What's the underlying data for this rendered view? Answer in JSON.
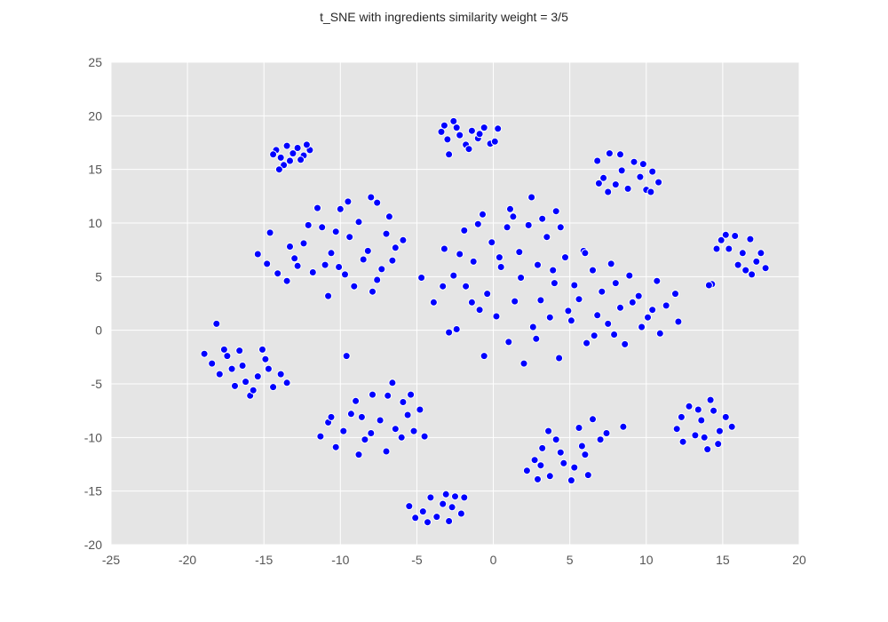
{
  "chart_data": {
    "type": "scatter",
    "title": "t_SNE with ingredients similarity weight = 3/5",
    "xlabel": "",
    "ylabel": "",
    "xlim": [
      -25,
      20
    ],
    "ylim": [
      -20,
      25
    ],
    "xticks": [
      -25,
      -20,
      -15,
      -10,
      -5,
      0,
      5,
      10,
      15,
      20
    ],
    "yticks": [
      -20,
      -15,
      -10,
      -5,
      0,
      5,
      10,
      15,
      20,
      25
    ],
    "grid": true,
    "colors": {
      "background": "#e5e5e5",
      "grid": "#ffffff",
      "point": "#0000ff",
      "point_edge": "#ffffff"
    },
    "series": [
      {
        "points": [
          [
            -14.2,
            16.8
          ],
          [
            -13.9,
            16.1
          ],
          [
            -13.5,
            17.2
          ],
          [
            -13.1,
            16.5
          ],
          [
            -12.8,
            17.0
          ],
          [
            -12.4,
            16.3
          ],
          [
            -12.0,
            16.8
          ],
          [
            -13.7,
            15.4
          ],
          [
            -14.4,
            16.4
          ],
          [
            -12.6,
            15.9
          ],
          [
            -13.3,
            15.8
          ],
          [
            -12.2,
            17.3
          ],
          [
            -14.0,
            15.0
          ],
          [
            -3.4,
            18.5
          ],
          [
            -3.0,
            17.8
          ],
          [
            -2.6,
            19.5
          ],
          [
            -2.2,
            18.2
          ],
          [
            -1.8,
            17.3
          ],
          [
            -1.4,
            18.6
          ],
          [
            -1.0,
            17.9
          ],
          [
            -0.6,
            18.9
          ],
          [
            -0.2,
            17.4
          ],
          [
            0.3,
            18.8
          ],
          [
            -2.9,
            16.4
          ],
          [
            -2.4,
            18.9
          ],
          [
            -1.6,
            16.9
          ],
          [
            -3.2,
            19.1
          ],
          [
            -0.9,
            18.3
          ],
          [
            0.1,
            17.6
          ],
          [
            6.8,
            15.8
          ],
          [
            7.2,
            14.2
          ],
          [
            7.6,
            16.5
          ],
          [
            8.0,
            13.6
          ],
          [
            8.4,
            14.9
          ],
          [
            8.8,
            13.2
          ],
          [
            9.2,
            15.7
          ],
          [
            9.6,
            14.3
          ],
          [
            10.0,
            13.1
          ],
          [
            10.4,
            14.8
          ],
          [
            10.8,
            13.8
          ],
          [
            8.3,
            16.4
          ],
          [
            6.9,
            13.7
          ],
          [
            7.5,
            12.9
          ],
          [
            9.8,
            15.5
          ],
          [
            10.3,
            12.9
          ],
          [
            14.9,
            8.4
          ],
          [
            15.4,
            7.6
          ],
          [
            15.8,
            8.8
          ],
          [
            16.3,
            7.2
          ],
          [
            16.8,
            8.5
          ],
          [
            17.2,
            6.4
          ],
          [
            16.5,
            5.6
          ],
          [
            16.0,
            6.1
          ],
          [
            17.5,
            7.2
          ],
          [
            14.6,
            7.6
          ],
          [
            15.2,
            8.9
          ],
          [
            17.8,
            5.8
          ],
          [
            14.3,
            4.3
          ],
          [
            16.9,
            5.2
          ],
          [
            14.1,
            4.2
          ],
          [
            -15.4,
            7.1
          ],
          [
            -14.8,
            6.2
          ],
          [
            -14.1,
            5.3
          ],
          [
            -13.5,
            4.6
          ],
          [
            -13.0,
            6.7
          ],
          [
            -12.4,
            8.1
          ],
          [
            -11.8,
            5.4
          ],
          [
            -11.2,
            9.6
          ],
          [
            -10.6,
            7.2
          ],
          [
            -10.0,
            11.3
          ],
          [
            -9.4,
            8.7
          ],
          [
            -8.8,
            10.1
          ],
          [
            -8.2,
            7.4
          ],
          [
            -7.6,
            11.9
          ],
          [
            -7.0,
            9.0
          ],
          [
            -6.4,
            7.7
          ],
          [
            -5.9,
            8.4
          ],
          [
            -9.7,
            5.2
          ],
          [
            -9.1,
            4.1
          ],
          [
            -8.5,
            6.6
          ],
          [
            -7.9,
            3.6
          ],
          [
            -7.3,
            5.7
          ],
          [
            -10.8,
            3.2
          ],
          [
            -12.1,
            9.8
          ],
          [
            -13.3,
            7.8
          ],
          [
            -10.3,
            9.2
          ],
          [
            -11.5,
            11.4
          ],
          [
            -6.8,
            10.6
          ],
          [
            -8.0,
            12.4
          ],
          [
            -9.5,
            12.0
          ],
          [
            -11.0,
            6.1
          ],
          [
            -12.8,
            6.0
          ],
          [
            -14.6,
            9.1
          ],
          [
            -7.6,
            4.7
          ],
          [
            -6.6,
            6.5
          ],
          [
            -10.1,
            5.9
          ],
          [
            -4.7,
            4.9
          ],
          [
            -3.9,
            2.6
          ],
          [
            -3.2,
            7.6
          ],
          [
            -2.6,
            5.1
          ],
          [
            -1.9,
            9.3
          ],
          [
            -1.3,
            6.4
          ],
          [
            -0.7,
            10.8
          ],
          [
            -0.1,
            8.2
          ],
          [
            0.5,
            5.9
          ],
          [
            1.1,
            11.3
          ],
          [
            1.7,
            7.3
          ],
          [
            2.3,
            9.8
          ],
          [
            2.9,
            6.1
          ],
          [
            3.5,
            8.7
          ],
          [
            4.1,
            11.1
          ],
          [
            4.7,
            6.8
          ],
          [
            5.3,
            4.2
          ],
          [
            5.9,
            7.4
          ],
          [
            6.5,
            5.6
          ],
          [
            7.1,
            3.6
          ],
          [
            7.7,
            6.2
          ],
          [
            8.3,
            2.1
          ],
          [
            8.9,
            5.1
          ],
          [
            9.5,
            3.2
          ],
          [
            10.1,
            1.2
          ],
          [
            10.7,
            4.6
          ],
          [
            11.3,
            2.3
          ],
          [
            11.9,
            3.4
          ],
          [
            12.1,
            0.8
          ],
          [
            9.7,
            0.3
          ],
          [
            8.6,
            -1.3
          ],
          [
            7.5,
            0.6
          ],
          [
            6.1,
            -1.2
          ],
          [
            5.1,
            0.9
          ],
          [
            4.3,
            -2.6
          ],
          [
            3.7,
            1.2
          ],
          [
            2.8,
            -0.8
          ],
          [
            2.0,
            -3.1
          ],
          [
            1.0,
            -1.1
          ],
          [
            0.2,
            1.3
          ],
          [
            -0.6,
            -2.4
          ],
          [
            -1.4,
            2.6
          ],
          [
            -2.4,
            0.1
          ],
          [
            -3.3,
            4.1
          ],
          [
            -2.9,
            -0.2
          ],
          [
            -0.4,
            3.4
          ],
          [
            1.4,
            2.7
          ],
          [
            3.1,
            2.8
          ],
          [
            4.9,
            1.8
          ],
          [
            6.8,
            1.4
          ],
          [
            7.9,
            -0.4
          ],
          [
            9.1,
            2.6
          ],
          [
            10.4,
            1.9
          ],
          [
            3.2,
            10.4
          ],
          [
            2.5,
            12.4
          ],
          [
            0.9,
            9.6
          ],
          [
            -1.0,
            9.9
          ],
          [
            -1.8,
            4.1
          ],
          [
            0.4,
            6.8
          ],
          [
            4.4,
            9.6
          ],
          [
            6.0,
            7.2
          ],
          [
            8.0,
            4.4
          ],
          [
            10.9,
            -0.3
          ],
          [
            1.8,
            4.9
          ],
          [
            -0.9,
            1.9
          ],
          [
            2.6,
            0.3
          ],
          [
            5.6,
            2.9
          ],
          [
            6.6,
            -0.5
          ],
          [
            4.0,
            4.4
          ],
          [
            -2.2,
            7.1
          ],
          [
            1.3,
            10.6
          ],
          [
            3.9,
            5.6
          ],
          [
            -18.1,
            0.6
          ],
          [
            -18.9,
            -2.2
          ],
          [
            -18.4,
            -3.1
          ],
          [
            -17.9,
            -4.1
          ],
          [
            -17.4,
            -2.4
          ],
          [
            -16.9,
            -5.2
          ],
          [
            -16.4,
            -3.3
          ],
          [
            -15.9,
            -6.1
          ],
          [
            -15.4,
            -4.3
          ],
          [
            -14.9,
            -2.7
          ],
          [
            -14.4,
            -5.3
          ],
          [
            -13.9,
            -4.1
          ],
          [
            -13.5,
            -4.9
          ],
          [
            -15.1,
            -1.8
          ],
          [
            -16.6,
            -1.9
          ],
          [
            -17.1,
            -3.6
          ],
          [
            -14.7,
            -3.6
          ],
          [
            -15.7,
            -5.6
          ],
          [
            -16.2,
            -4.8
          ],
          [
            -17.6,
            -1.8
          ],
          [
            -11.3,
            -9.9
          ],
          [
            -10.8,
            -8.6
          ],
          [
            -10.3,
            -10.9
          ],
          [
            -9.8,
            -9.4
          ],
          [
            -9.3,
            -7.8
          ],
          [
            -8.8,
            -11.6
          ],
          [
            -8.4,
            -10.2
          ],
          [
            -7.9,
            -6.0
          ],
          [
            -7.4,
            -8.4
          ],
          [
            -6.9,
            -6.1
          ],
          [
            -6.4,
            -9.2
          ],
          [
            -6.0,
            -10.0
          ],
          [
            -5.6,
            -7.9
          ],
          [
            -5.2,
            -9.4
          ],
          [
            -4.8,
            -7.4
          ],
          [
            -5.9,
            -6.7
          ],
          [
            -6.6,
            -4.9
          ],
          [
            -9.6,
            -2.4
          ],
          [
            -10.6,
            -8.1
          ],
          [
            -7.0,
            -11.3
          ],
          [
            -8.0,
            -9.6
          ],
          [
            -9.0,
            -6.6
          ],
          [
            -4.5,
            -9.9
          ],
          [
            -5.4,
            -6.0
          ],
          [
            -8.6,
            -8.1
          ],
          [
            -5.5,
            -16.4
          ],
          [
            -5.1,
            -17.5
          ],
          [
            -4.6,
            -16.9
          ],
          [
            -4.1,
            -15.6
          ],
          [
            -3.7,
            -17.4
          ],
          [
            -3.3,
            -16.2
          ],
          [
            -2.9,
            -17.8
          ],
          [
            -2.5,
            -15.5
          ],
          [
            -2.1,
            -17.1
          ],
          [
            -3.1,
            -15.3
          ],
          [
            -4.3,
            -17.9
          ],
          [
            -1.9,
            -15.6
          ],
          [
            -2.7,
            -16.5
          ],
          [
            2.2,
            -13.1
          ],
          [
            2.7,
            -12.1
          ],
          [
            3.2,
            -11.0
          ],
          [
            3.7,
            -13.6
          ],
          [
            4.1,
            -10.2
          ],
          [
            4.6,
            -12.4
          ],
          [
            5.1,
            -14.0
          ],
          [
            5.6,
            -9.1
          ],
          [
            6.0,
            -11.6
          ],
          [
            6.5,
            -8.3
          ],
          [
            7.0,
            -10.2
          ],
          [
            7.4,
            -9.6
          ],
          [
            5.3,
            -12.8
          ],
          [
            4.4,
            -11.4
          ],
          [
            3.6,
            -9.4
          ],
          [
            8.5,
            -9.0
          ],
          [
            6.2,
            -13.5
          ],
          [
            2.9,
            -13.9
          ],
          [
            5.8,
            -10.8
          ],
          [
            3.1,
            -12.6
          ],
          [
            12.0,
            -9.2
          ],
          [
            12.4,
            -10.4
          ],
          [
            12.8,
            -7.1
          ],
          [
            13.2,
            -9.8
          ],
          [
            13.6,
            -8.4
          ],
          [
            14.0,
            -11.1
          ],
          [
            14.4,
            -7.5
          ],
          [
            14.8,
            -9.4
          ],
          [
            15.2,
            -8.1
          ],
          [
            15.6,
            -9.0
          ],
          [
            14.2,
            -6.5
          ],
          [
            13.4,
            -7.4
          ],
          [
            12.3,
            -8.1
          ],
          [
            14.7,
            -10.6
          ],
          [
            13.8,
            -10.0
          ]
        ]
      }
    ]
  }
}
